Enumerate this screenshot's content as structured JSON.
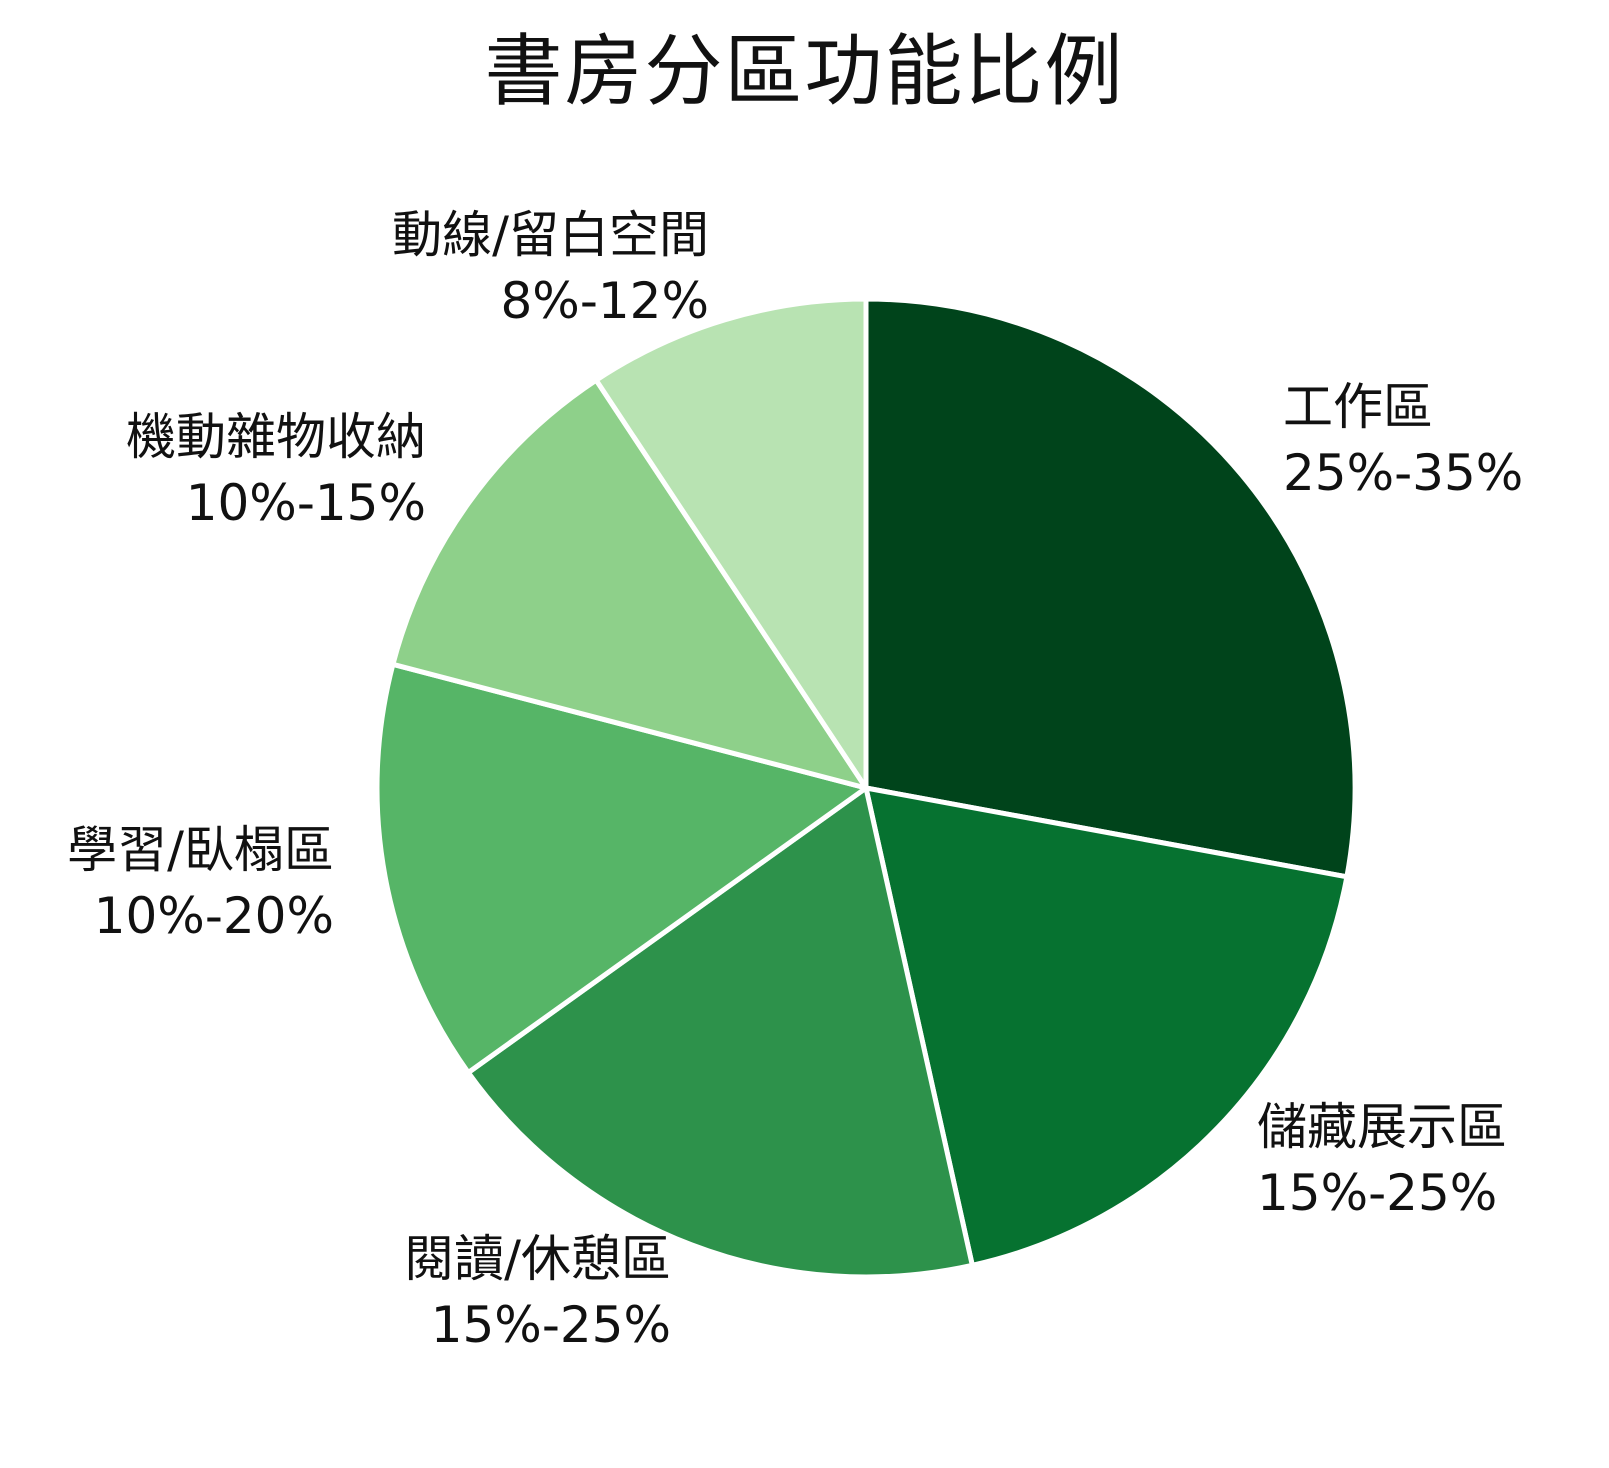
{
  "chart_data": {
    "type": "pie",
    "title": "書房分區功能比例",
    "start_angle": "90deg (12 o'clock)",
    "direction": "clockwise",
    "slices": [
      {
        "label": "工作區",
        "range": "25%-35%",
        "value": 30,
        "color": "#00441b"
      },
      {
        "label": "儲藏展示區",
        "range": "15%-25%",
        "value": 20,
        "color": "#067230"
      },
      {
        "label": "閱讀/休憩區",
        "range": "15%-25%",
        "value": 20,
        "color": "#2d924b"
      },
      {
        "label": "學習/臥榻區",
        "range": "10%-20%",
        "value": 15,
        "color": "#56b567"
      },
      {
        "label": "機動雜物收納",
        "range": "10%-15%",
        "value": 12.5,
        "color": "#8ed08a"
      },
      {
        "label": "動線/留白空間",
        "range": "8%-12%",
        "value": 10,
        "color": "#b8e3b2"
      }
    ],
    "edge_color": "#ffffff",
    "legend": "none (labels placed beside slices)"
  },
  "labels": [
    {
      "name": "工作區",
      "pct": "25%-35%"
    },
    {
      "name": "儲藏展示區",
      "pct": "15%-25%"
    },
    {
      "name": "閱讀/休憩區",
      "pct": "15%-25%"
    },
    {
      "name": "學習/臥榻區",
      "pct": "10%-20%"
    },
    {
      "name": "機動雜物收納",
      "pct": "10%-15%"
    },
    {
      "name": "動線/留白空間",
      "pct": "8%-12%"
    }
  ]
}
